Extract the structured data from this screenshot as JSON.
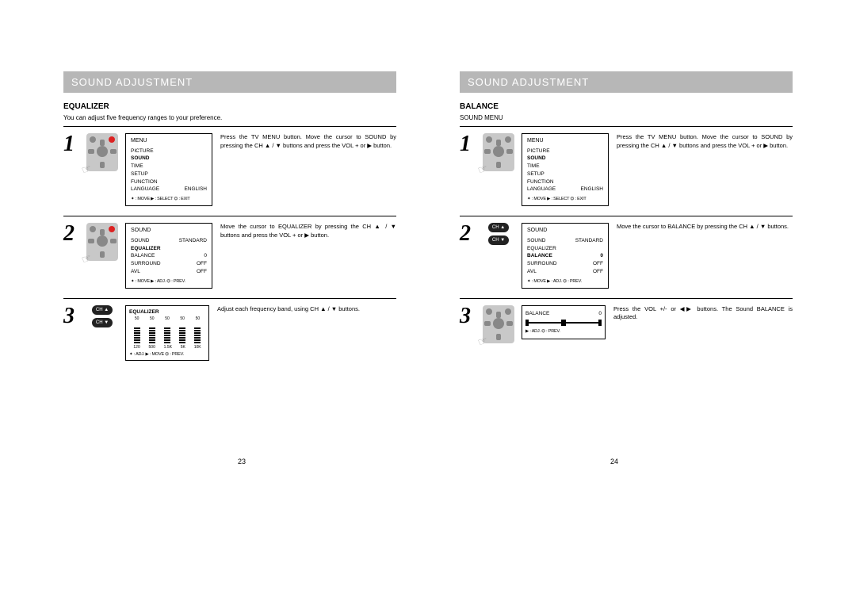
{
  "left": {
    "title": "SOUND ADJUSTMENT",
    "section": "EQUALIZER",
    "intro": "You can adjust five frequency ranges to your preference.",
    "step1": {
      "menu_title": "MENU",
      "items": [
        "PICTURE",
        "SOUND",
        "TIME",
        "SETUP",
        "FUNCTION",
        "LANGUAGE"
      ],
      "lang_val": "ENGLISH",
      "bold_item": "SOUND",
      "foot": "✦ : MOVE   ▶ : SELECT   ⏣ : EXIT",
      "instr": "Press the TV MENU button. Move the cursor to SOUND by pressing the CH ▲ / ▼ buttons and press the VOL + or ▶ button."
    },
    "step2": {
      "menu_title": "SOUND",
      "rows": [
        [
          "SOUND",
          "STANDARD"
        ],
        [
          "EQUALIZER",
          ""
        ],
        [
          "BALANCE",
          "0"
        ],
        [
          "SURROUND",
          "OFF"
        ],
        [
          "AVL",
          "OFF"
        ]
      ],
      "bold_item": "EQUALIZER",
      "foot": "✦ : MOVE   ▶ : ADJ.   ⏣ : PREV.",
      "instr": "Move the cursor to EQUALIZER by pressing the CH ▲ / ▼ buttons and press the VOL + or ▶ button."
    },
    "step3": {
      "title": "EQUALIZER",
      "values": [
        "50",
        "50",
        "50",
        "50",
        "50"
      ],
      "freqs": [
        "120",
        "500",
        "1.5K",
        "5K",
        "10K"
      ],
      "foot": "✦ : ADJ.   ▶ : MOVE   ⏣ : PREV.",
      "instr": "Adjust each frequency band, using CH ▲ / ▼ buttons.",
      "pill1": "CH ▲",
      "pill2": "CH ▼"
    },
    "pagenum": "23"
  },
  "right": {
    "title": "SOUND ADJUSTMENT",
    "section": "BALANCE",
    "intro": "SOUND MENU",
    "step1": {
      "menu_title": "MENU",
      "items": [
        "PICTURE",
        "SOUND",
        "TIME",
        "SETUP",
        "FUNCTION",
        "LANGUAGE"
      ],
      "lang_val": "ENGLISH",
      "bold_item": "SOUND",
      "foot": "✦ : MOVE   ▶ : SELECT   ⏣ : EXIT",
      "instr": "Press the TV MENU button. Move the cursor to SOUND by pressing the CH ▲ / ▼ buttons and press the VOL + or ▶ button."
    },
    "step2": {
      "menu_title": "SOUND",
      "rows": [
        [
          "SOUND",
          "STANDARD"
        ],
        [
          "EQUALIZER",
          ""
        ],
        [
          "BALANCE",
          "0"
        ],
        [
          "SURROUND",
          "OFF"
        ],
        [
          "AVL",
          "OFF"
        ]
      ],
      "bold_item": "BALANCE",
      "foot": "✦ : MOVE   ▶ : ADJ.   ⏣ : PREV.",
      "instr": "Move the cursor to BALANCE by pressing the CH ▲ / ▼ buttons.",
      "pill1": "CH ▲",
      "pill2": "CH ▼"
    },
    "step3": {
      "label": "BALANCE",
      "value": "0",
      "foot": "▶ : ADJ.   ⏣ : PREV.",
      "instr": "Press the VOL +/- or ◀▶ buttons. The Sound BALANCE is adjusted."
    },
    "pagenum": "24"
  }
}
